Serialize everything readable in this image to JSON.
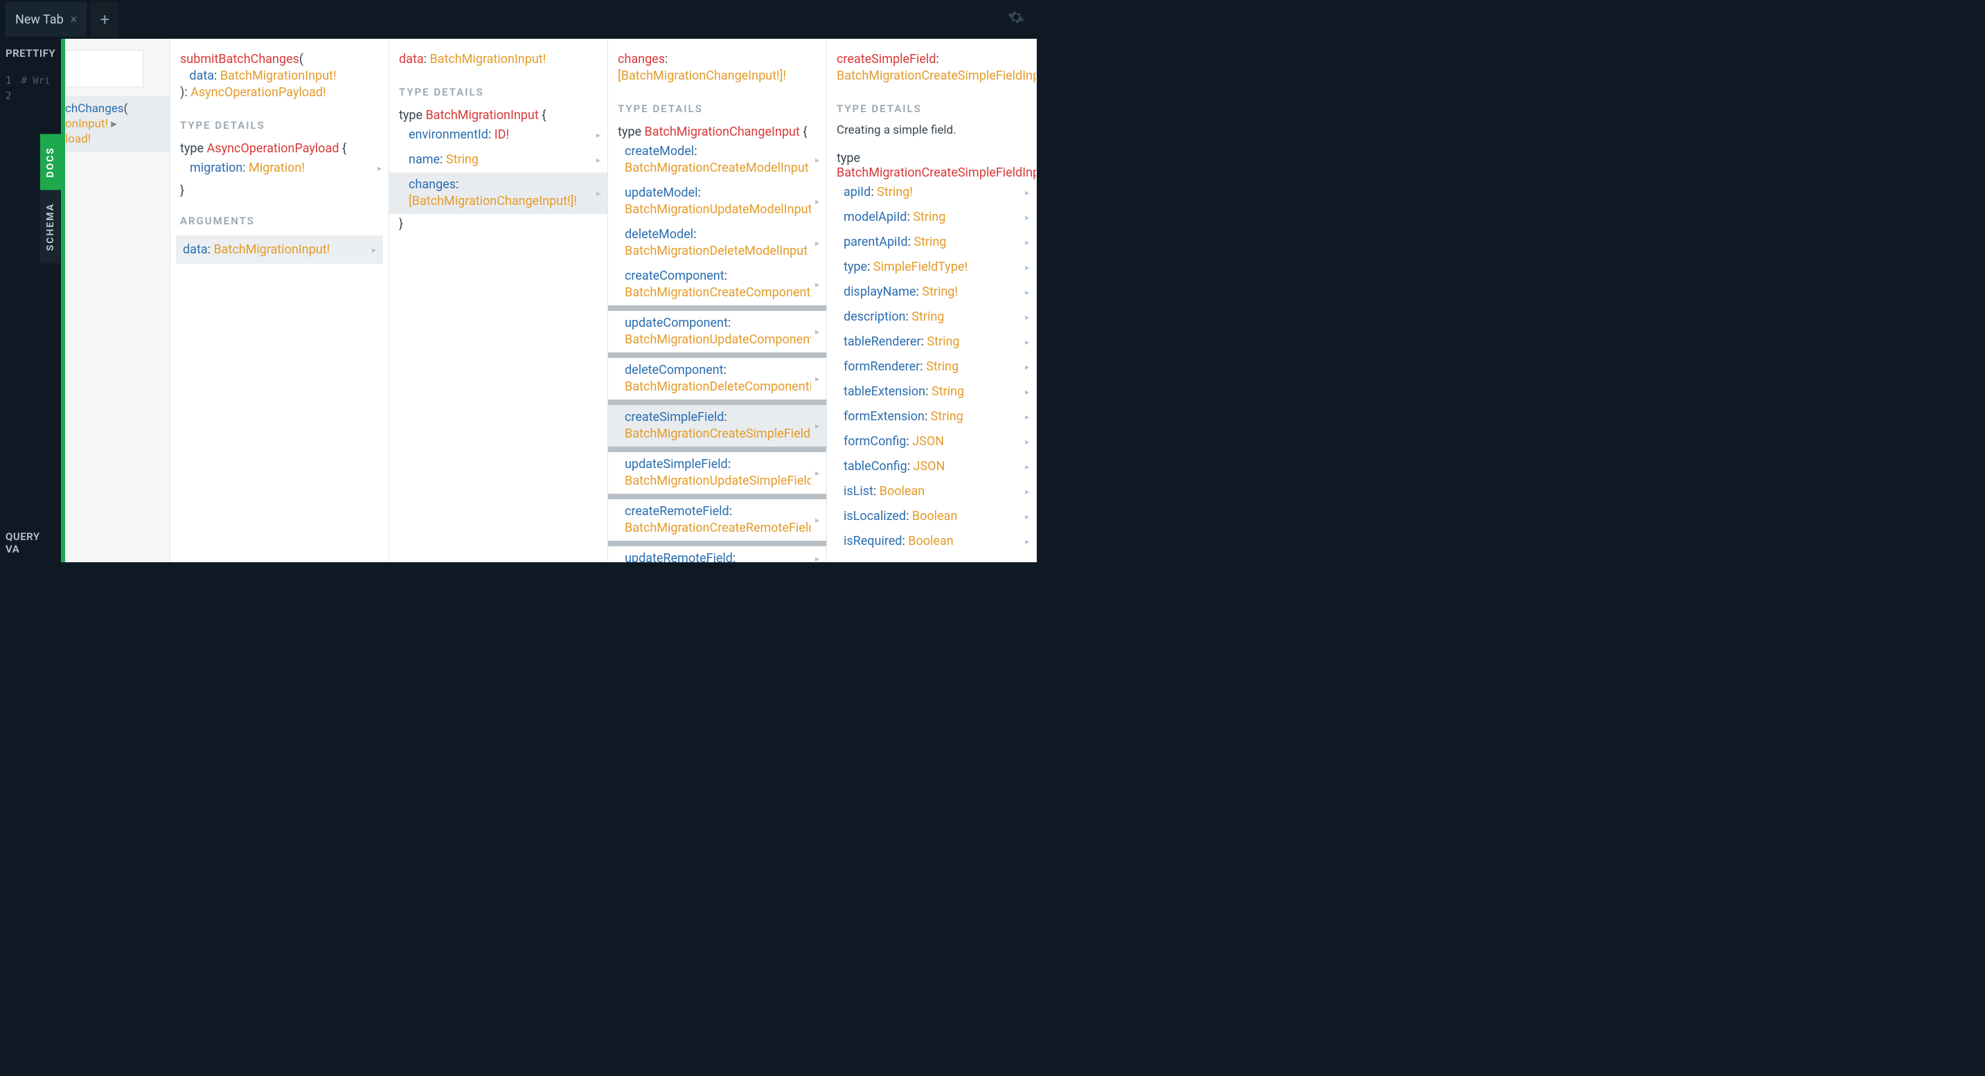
{
  "tab": {
    "label": "New Tab"
  },
  "toolbar": {
    "prettify": "PRETTIFY",
    "queryVariables": "QUERY VA"
  },
  "editor": {
    "line1": "1",
    "line2": "2",
    "hint": "# Wri"
  },
  "sideTabs": {
    "docs": "DOCS",
    "schema": "SCHEMA"
  },
  "colors": {
    "blue": "#2a6db0",
    "orange": "#e49b2a",
    "red": "#d93838",
    "selBg": "#e9ecef",
    "green": "#1ea94f"
  },
  "snippet": {
    "name": "chChanges",
    "arg": "onInput!",
    "ret": "load!"
  },
  "col1": {
    "sigName": "submitBatchChanges",
    "sigArgName": "data",
    "sigArgType": "BatchMigrationInput!",
    "sigReturn": "AsyncOperationPayload!",
    "typeDetails": "TYPE DETAILS",
    "typeKeyword": "type",
    "typeName": "AsyncOperationPayload",
    "field1Name": "migration",
    "field1Type": "Migration!",
    "arguments": "ARGUMENTS",
    "arg1Name": "data",
    "arg1Type": "BatchMigrationInput!"
  },
  "col2": {
    "sigName": "data",
    "sigType": "BatchMigrationInput!",
    "typeDetails": "TYPE DETAILS",
    "typeKeyword": "type",
    "typeName": "BatchMigrationInput",
    "f1n": "environmentId",
    "f1t": "ID!",
    "f2n": "name",
    "f2t": "String",
    "f3n": "changes",
    "f3t": "[BatchMigrationChangeInput!]!"
  },
  "col3": {
    "sigName": "changes",
    "sigType": "[BatchMigrationChangeInput!]!",
    "typeDetails": "TYPE DETAILS",
    "typeKeyword": "type",
    "typeName": "BatchMigrationChangeInput",
    "fields": [
      {
        "n": "createModel",
        "t": "BatchMigrationCreateModelInput"
      },
      {
        "n": "updateModel",
        "t": "BatchMigrationUpdateModelInput"
      },
      {
        "n": "deleteModel",
        "t": "BatchMigrationDeleteModelInput"
      },
      {
        "n": "createComponent",
        "t": "BatchMigrationCreateComponentInpu"
      },
      {
        "n": "updateComponent",
        "t": "BatchMigrationUpdateComponentInpu"
      },
      {
        "n": "deleteComponent",
        "t": "BatchMigrationDeleteComponentInpu"
      },
      {
        "n": "createSimpleField",
        "t": "BatchMigrationCreateSimpleFieldInpu"
      },
      {
        "n": "updateSimpleField",
        "t": "BatchMigrationUpdateSimpleFieldInpu"
      },
      {
        "n": "createRemoteField",
        "t": "BatchMigrationCreateRemoteFieldInpu"
      },
      {
        "n": "updateRemoteField",
        "t": ""
      }
    ],
    "selectedIndex": 6
  },
  "col4": {
    "sigName": "createSimpleField",
    "sigType": "BatchMigrationCreateSimpleFieldInput",
    "typeDetails": "TYPE DETAILS",
    "description": "Creating a simple field.",
    "typeKeyword": "type",
    "typeName": "BatchMigrationCreateSimpleFieldInp",
    "fields": [
      {
        "n": "apiId",
        "t": "String!"
      },
      {
        "n": "modelApiId",
        "t": "String"
      },
      {
        "n": "parentApiId",
        "t": "String"
      },
      {
        "n": "type",
        "t": "SimpleFieldType!"
      },
      {
        "n": "displayName",
        "t": "String!"
      },
      {
        "n": "description",
        "t": "String"
      },
      {
        "n": "tableRenderer",
        "t": "String"
      },
      {
        "n": "formRenderer",
        "t": "String"
      },
      {
        "n": "tableExtension",
        "t": "String"
      },
      {
        "n": "formExtension",
        "t": "String"
      },
      {
        "n": "formConfig",
        "t": "JSON"
      },
      {
        "n": "tableConfig",
        "t": "JSON"
      },
      {
        "n": "isList",
        "t": "Boolean"
      },
      {
        "n": "isLocalized",
        "t": "Boolean"
      },
      {
        "n": "isRequired",
        "t": "Boolean"
      }
    ]
  }
}
